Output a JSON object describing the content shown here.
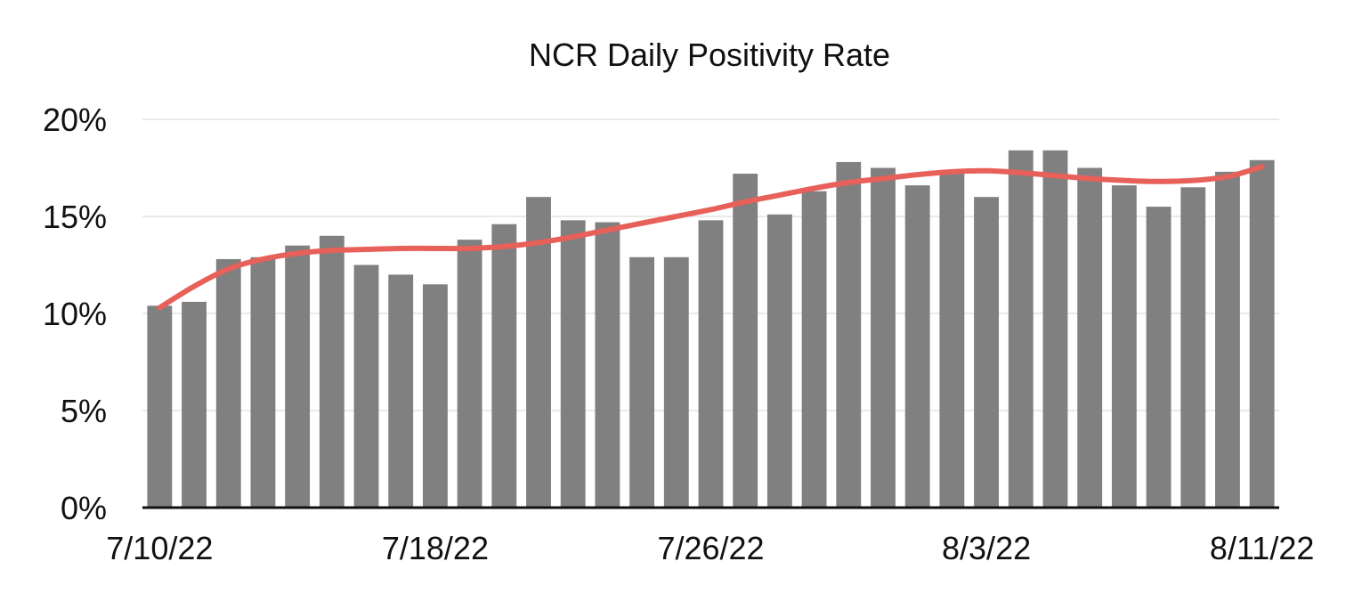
{
  "chart_data": {
    "type": "bar",
    "title": "NCR Daily Positivity Rate",
    "xlabel": "",
    "ylabel": "",
    "ylim": [
      0,
      20
    ],
    "y_ticks": [
      0,
      5,
      10,
      15,
      20
    ],
    "y_tick_labels": [
      "0%",
      "5%",
      "10%",
      "15%",
      "20%"
    ],
    "x_tick_labels": [
      "7/10/22",
      "7/18/22",
      "7/26/22",
      "8/3/22",
      "8/11/22"
    ],
    "grid": true,
    "legend": "none",
    "bar_color": "#808080",
    "trend_color": "#e8605a",
    "categories": [
      "7/10/22",
      "7/11/22",
      "7/12/22",
      "7/13/22",
      "7/14/22",
      "7/15/22",
      "7/16/22",
      "7/17/22",
      "7/18/22",
      "7/19/22",
      "7/20/22",
      "7/21/22",
      "7/22/22",
      "7/23/22",
      "7/24/22",
      "7/25/22",
      "7/26/22",
      "7/27/22",
      "7/28/22",
      "7/29/22",
      "7/30/22",
      "7/31/22",
      "8/1/22",
      "8/2/22",
      "8/3/22",
      "8/4/22",
      "8/5/22",
      "8/6/22",
      "8/7/22",
      "8/8/22",
      "8/9/22",
      "8/10/22",
      "8/11/22"
    ],
    "values": [
      10.4,
      10.6,
      12.8,
      12.9,
      13.5,
      14.0,
      12.5,
      12.0,
      11.5,
      13.8,
      14.6,
      16.0,
      14.8,
      14.7,
      12.9,
      12.9,
      14.8,
      17.2,
      15.1,
      16.3,
      17.8,
      17.5,
      16.6,
      17.3,
      16.0,
      18.4,
      18.4,
      17.5,
      16.6,
      15.5,
      16.5,
      17.3,
      17.9
    ],
    "trend": [
      10.3,
      11.4,
      12.3,
      12.8,
      13.1,
      13.25,
      13.3,
      13.35,
      13.35,
      13.35,
      13.45,
      13.65,
      13.95,
      14.3,
      14.65,
      15.0,
      15.35,
      15.75,
      16.1,
      16.45,
      16.75,
      16.95,
      17.15,
      17.3,
      17.35,
      17.25,
      17.1,
      16.95,
      16.85,
      16.8,
      16.85,
      17.05,
      17.55
    ]
  }
}
